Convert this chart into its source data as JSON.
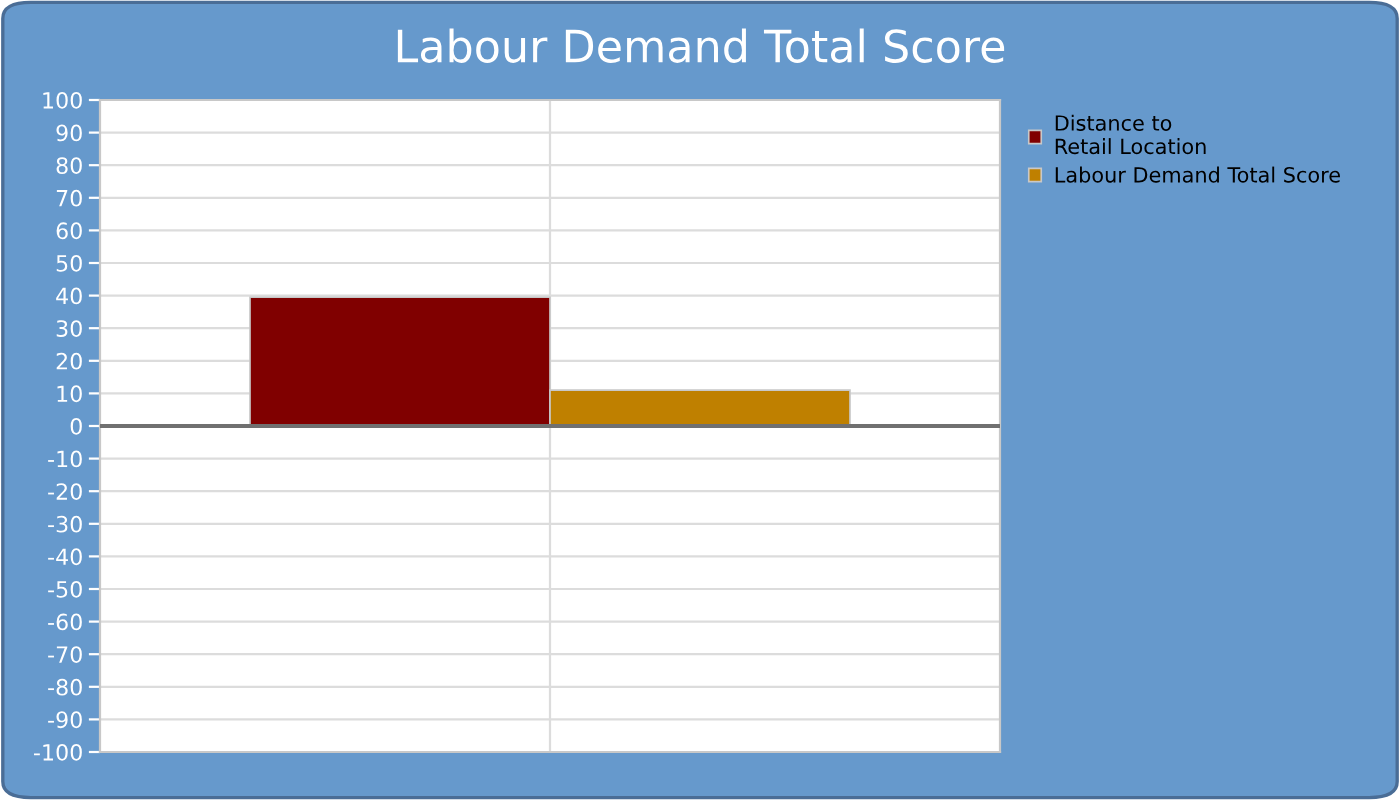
{
  "chart_data": {
    "type": "bar",
    "title": "Labour Demand Total Score",
    "categories": [
      null
    ],
    "series": [
      {
        "name": "Distance to\nRetail Location",
        "color": "#800000",
        "values": [
          39.5
        ]
      },
      {
        "name": "Labour Demand Total Score",
        "color": "#bf8000",
        "values": [
          11
        ]
      }
    ],
    "ylim": [
      -100,
      100
    ],
    "yticks": [
      -100,
      -90,
      -80,
      -70,
      -60,
      -50,
      -40,
      -30,
      -20,
      -10,
      0,
      10,
      20,
      30,
      40,
      50,
      60,
      70,
      80,
      90,
      100
    ],
    "ref_lines": [
      {
        "axis": "y",
        "value": 0,
        "label": null,
        "color": "#707070"
      }
    ],
    "grid": true,
    "legend": "top right"
  }
}
